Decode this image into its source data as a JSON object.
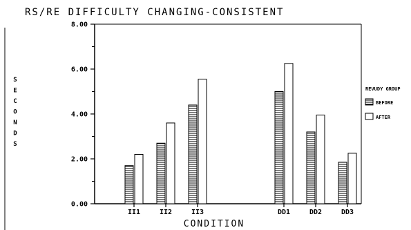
{
  "chart_data": {
    "type": "bar",
    "title": "RS/RE DIFFICULTY CHANGING-CONSISTENT",
    "xlabel": "CONDITION",
    "ylabel": "SECONDS",
    "categories": [
      "II1",
      "II2",
      "II3",
      "DD1",
      "DD2",
      "DD3"
    ],
    "series": [
      {
        "name": "BEFORE",
        "values": [
          1.7,
          2.7,
          4.4,
          5.0,
          3.2,
          1.85
        ]
      },
      {
        "name": "AFTER",
        "values": [
          2.2,
          3.6,
          5.55,
          6.25,
          3.95,
          2.25
        ]
      }
    ],
    "ylim": [
      0,
      8
    ],
    "yticks": [
      "0.00",
      "2.00",
      "4.00",
      "6.00",
      "8.00"
    ],
    "legend_title": "REVUDY GROUP",
    "legend_position": "right",
    "grid": false,
    "colors": {
      "axis": "#000000",
      "bar_fill": "#ffffff",
      "hatch": "#000000"
    }
  }
}
